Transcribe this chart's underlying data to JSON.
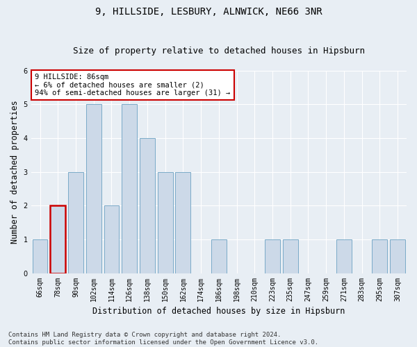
{
  "title": "9, HILLSIDE, LESBURY, ALNWICK, NE66 3NR",
  "subtitle": "Size of property relative to detached houses in Hipsburn",
  "xlabel": "Distribution of detached houses by size in Hipsburn",
  "ylabel": "Number of detached properties",
  "categories": [
    "66sqm",
    "78sqm",
    "90sqm",
    "102sqm",
    "114sqm",
    "126sqm",
    "138sqm",
    "150sqm",
    "162sqm",
    "174sqm",
    "186sqm",
    "198sqm",
    "210sqm",
    "223sqm",
    "235sqm",
    "247sqm",
    "259sqm",
    "271sqm",
    "283sqm",
    "295sqm",
    "307sqm"
  ],
  "values": [
    1,
    2,
    3,
    5,
    2,
    5,
    4,
    3,
    3,
    0,
    1,
    0,
    0,
    1,
    1,
    0,
    0,
    1,
    0,
    1,
    1
  ],
  "bar_color": "#ccd9e8",
  "bar_edge_color": "#7aaac8",
  "highlight_index": 1,
  "highlight_bar_edge_color": "#cc0000",
  "annotation_text": "9 HILLSIDE: 86sqm\n← 6% of detached houses are smaller (2)\n94% of semi-detached houses are larger (31) →",
  "annotation_box_color": "#ffffff",
  "annotation_box_edge_color": "#cc0000",
  "footnote": "Contains HM Land Registry data © Crown copyright and database right 2024.\nContains public sector information licensed under the Open Government Licence v3.0.",
  "ylim": [
    0,
    6
  ],
  "yticks": [
    0,
    1,
    2,
    3,
    4,
    5,
    6
  ],
  "background_color": "#e8eef4",
  "grid_color": "#ffffff",
  "title_fontsize": 10,
  "subtitle_fontsize": 9,
  "axis_label_fontsize": 8.5,
  "tick_fontsize": 7,
  "annotation_fontsize": 7.5,
  "footnote_fontsize": 6.5
}
